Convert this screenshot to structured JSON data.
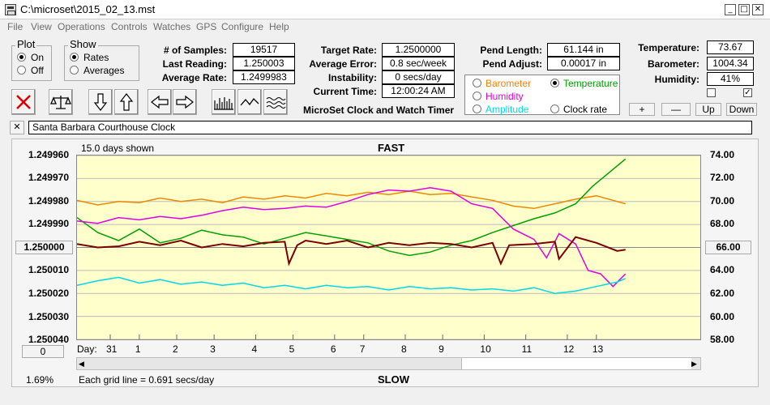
{
  "window": {
    "title": "C:\\microset\\2015_02_13.mst",
    "minimize_label": "_",
    "restore_label": "□",
    "close_label": "✕"
  },
  "menu": [
    "File",
    "View",
    "Operations",
    "Controls",
    "Watches",
    "GPS",
    "Configure",
    "Help"
  ],
  "plot_group": {
    "title": "Plot",
    "on_label": "On",
    "off_label": "Off",
    "selected": "On"
  },
  "show_group": {
    "title": "Show",
    "rates_label": "Rates",
    "averages_label": "Averages",
    "selected": "Rates"
  },
  "stats": {
    "samples_label": "# of Samples:",
    "samples": "19517",
    "last_reading_label": "Last Reading:",
    "last_reading": "1.250003",
    "average_rate_label": "Average Rate:",
    "average_rate": "1.2499983",
    "target_rate_label": "Target Rate:",
    "target_rate": "1.2500000",
    "average_error_label": "Average Error:",
    "average_error": "0.8 sec/week",
    "instability_label": "Instability:",
    "instability": "0 secs/day",
    "current_time_label": "Current Time:",
    "current_time": "12:00:24 AM",
    "pend_length_label": "Pend Length:",
    "pend_length": "61.144 in",
    "pend_adjust_label": "Pend Adjust:",
    "pend_adjust": "0.00017 in",
    "temperature_label": "Temperature:",
    "temperature": "73.67",
    "barometer_label": "Barometer:",
    "barometer": "1004.34",
    "humidity_label": "Humidity:",
    "humidity": "41%"
  },
  "app_caption": "MicroSet Clock and Watch Timer",
  "sensor_select": {
    "options": [
      {
        "label": "Barometer",
        "color": "#ff8000",
        "selected": false
      },
      {
        "label": "Temperature",
        "color": "#00a000",
        "selected": true
      },
      {
        "label": "Humidity",
        "color": "#e000e0",
        "selected": false
      },
      {
        "label": "Amplitude",
        "color": "#00d8e8",
        "selected": false
      },
      {
        "label": "Clock rate",
        "color": "#000000",
        "selected": false
      }
    ]
  },
  "scale_buttons": {
    "plus": "+",
    "minus": "—",
    "up": "Up",
    "down": "Down"
  },
  "checkboxes": [
    {
      "checked": false
    },
    {
      "checked": true
    }
  ],
  "toolbar_icons": [
    "delete-icon",
    "balance-icon",
    "arrow-down-icon",
    "arrow-up-icon",
    "arrow-left-icon",
    "arrow-right-icon",
    "bars-icon",
    "wave-icon",
    "squiggle-icon"
  ],
  "clock_name": "Santa Barbara Courthouse Clock",
  "clear_name_label": "✕",
  "chart_data": {
    "type": "line",
    "top_label": "FAST",
    "bottom_label": "SLOW",
    "days_shown": "15.0 days shown",
    "grid_note": "Each grid line = 0.691 secs/day",
    "percent": "1.69%",
    "day_prefix": "Day:",
    "days": [
      "31",
      "1",
      "2",
      "3",
      "4",
      "5",
      "6",
      "7",
      "8",
      "9",
      "10",
      "11",
      "12",
      "13"
    ],
    "y_left_ticks": [
      "1.249960",
      "1.249970",
      "1.249980",
      "1.249990",
      "1.250000",
      "1.250010",
      "1.250020",
      "1.250030",
      "1.250040"
    ],
    "y_left_center": "1.250000",
    "y_left_bottom": "0",
    "y_right_ticks": [
      "74.00",
      "72.00",
      "70.00",
      "68.00",
      "66.00",
      "64.00",
      "62.00",
      "60.00",
      "58.00"
    ],
    "y_right_center": "66.00",
    "x_range": [
      0,
      15
    ],
    "y_right_range": [
      58,
      74
    ],
    "series": [
      {
        "name": "Barometer",
        "color": "#ee8800",
        "points": [
          [
            0,
            70.1
          ],
          [
            0.5,
            69.7
          ],
          [
            1,
            70.0
          ],
          [
            1.5,
            69.9
          ],
          [
            2,
            70.3
          ],
          [
            2.5,
            70.0
          ],
          [
            3,
            70.2
          ],
          [
            3.5,
            69.9
          ],
          [
            4,
            70.4
          ],
          [
            4.5,
            70.2
          ],
          [
            5,
            70.5
          ],
          [
            5.5,
            70.3
          ],
          [
            6,
            70.7
          ],
          [
            6.5,
            70.5
          ],
          [
            7,
            70.8
          ],
          [
            7.5,
            70.6
          ],
          [
            8,
            70.9
          ],
          [
            8.5,
            70.6
          ],
          [
            9,
            70.7
          ],
          [
            9.5,
            70.4
          ],
          [
            10,
            70.1
          ],
          [
            10.5,
            69.6
          ],
          [
            11,
            69.4
          ],
          [
            11.5,
            69.8
          ],
          [
            12,
            70.2
          ],
          [
            12.5,
            70.5
          ],
          [
            13,
            70.0
          ],
          [
            13.2,
            69.8
          ]
        ]
      },
      {
        "name": "Temperature",
        "color": "#00a000",
        "points": [
          [
            0,
            68.6
          ],
          [
            0.5,
            67.3
          ],
          [
            1,
            66.6
          ],
          [
            1.5,
            67.6
          ],
          [
            2,
            66.4
          ],
          [
            2.5,
            66.8
          ],
          [
            3,
            67.5
          ],
          [
            3.5,
            67.1
          ],
          [
            4,
            66.9
          ],
          [
            4.5,
            66.3
          ],
          [
            5,
            66.8
          ],
          [
            5.5,
            67.3
          ],
          [
            6,
            67.0
          ],
          [
            6.5,
            66.7
          ],
          [
            7,
            66.4
          ],
          [
            7.5,
            65.7
          ],
          [
            8,
            65.3
          ],
          [
            8.5,
            65.6
          ],
          [
            9,
            66.2
          ],
          [
            9.5,
            66.6
          ],
          [
            10,
            67.3
          ],
          [
            10.5,
            67.9
          ],
          [
            11,
            68.5
          ],
          [
            11.5,
            69.0
          ],
          [
            12,
            69.8
          ],
          [
            12.4,
            71.3
          ],
          [
            12.8,
            72.5
          ],
          [
            13.2,
            73.7
          ]
        ]
      },
      {
        "name": "Humidity",
        "color": "#e000e0",
        "points": [
          [
            0,
            68.3
          ],
          [
            0.5,
            68.1
          ],
          [
            1,
            68.6
          ],
          [
            1.5,
            68.4
          ],
          [
            2,
            68.7
          ],
          [
            2.5,
            68.5
          ],
          [
            3,
            68.8
          ],
          [
            3.5,
            69.2
          ],
          [
            4,
            69.5
          ],
          [
            4.5,
            69.3
          ],
          [
            5,
            69.4
          ],
          [
            5.5,
            69.6
          ],
          [
            6,
            69.5
          ],
          [
            6.5,
            70.0
          ],
          [
            7,
            70.6
          ],
          [
            7.5,
            71.0
          ],
          [
            8,
            70.9
          ],
          [
            8.5,
            71.2
          ],
          [
            9,
            70.9
          ],
          [
            9.5,
            69.8
          ],
          [
            10,
            69.4
          ],
          [
            10.5,
            67.6
          ],
          [
            11,
            66.7
          ],
          [
            11.3,
            65.1
          ],
          [
            11.6,
            67.2
          ],
          [
            12,
            66.3
          ],
          [
            12.3,
            64.0
          ],
          [
            12.6,
            63.7
          ],
          [
            12.9,
            62.6
          ],
          [
            13.2,
            63.7
          ]
        ]
      },
      {
        "name": "Amplitude",
        "color": "#00d8e8",
        "points": [
          [
            0,
            62.7
          ],
          [
            0.5,
            63.1
          ],
          [
            1,
            63.4
          ],
          [
            1.5,
            62.9
          ],
          [
            2,
            63.2
          ],
          [
            2.5,
            62.8
          ],
          [
            3,
            63.0
          ],
          [
            3.5,
            62.7
          ],
          [
            4,
            62.9
          ],
          [
            4.5,
            62.5
          ],
          [
            5,
            62.7
          ],
          [
            5.5,
            62.4
          ],
          [
            6,
            62.7
          ],
          [
            6.5,
            62.5
          ],
          [
            7,
            62.6
          ],
          [
            7.5,
            62.3
          ],
          [
            8,
            62.6
          ],
          [
            8.5,
            62.4
          ],
          [
            9,
            62.5
          ],
          [
            9.5,
            62.3
          ],
          [
            10,
            62.4
          ],
          [
            10.5,
            62.2
          ],
          [
            11,
            62.5
          ],
          [
            11.5,
            62.0
          ],
          [
            12,
            62.2
          ],
          [
            12.5,
            62.6
          ],
          [
            13,
            63.0
          ],
          [
            13.2,
            63.3
          ]
        ]
      },
      {
        "name": "Clock rate",
        "color": "#7a0000",
        "points": [
          [
            0,
            66.3
          ],
          [
            0.5,
            66.0
          ],
          [
            1,
            66.1
          ],
          [
            1.5,
            66.5
          ],
          [
            2,
            66.2
          ],
          [
            2.5,
            66.6
          ],
          [
            3,
            66.0
          ],
          [
            3.5,
            66.3
          ],
          [
            4,
            66.1
          ],
          [
            4.5,
            66.4
          ],
          [
            5,
            66.5
          ],
          [
            5.1,
            64.6
          ],
          [
            5.3,
            66.2
          ],
          [
            5.5,
            66.6
          ],
          [
            6,
            66.3
          ],
          [
            6.5,
            66.6
          ],
          [
            7,
            66.0
          ],
          [
            7.5,
            66.4
          ],
          [
            8,
            66.2
          ],
          [
            8.5,
            66.4
          ],
          [
            9,
            66.3
          ],
          [
            9.5,
            66.0
          ],
          [
            10,
            66.4
          ],
          [
            10.2,
            64.6
          ],
          [
            10.4,
            66.2
          ],
          [
            11,
            66.3
          ],
          [
            11.5,
            66.5
          ],
          [
            11.6,
            65.0
          ],
          [
            12,
            66.9
          ],
          [
            12.5,
            66.4
          ],
          [
            13,
            65.7
          ],
          [
            13.2,
            65.8
          ]
        ]
      }
    ]
  }
}
